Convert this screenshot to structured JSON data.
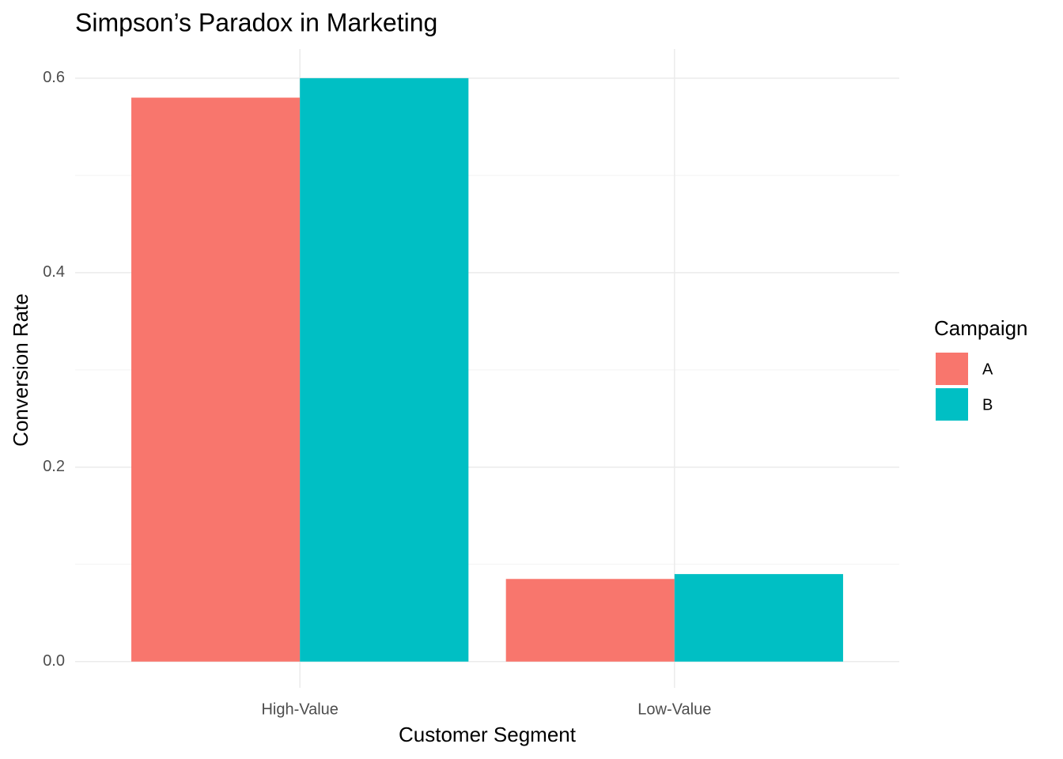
{
  "chart_data": {
    "type": "bar",
    "title": "Simpson’s Paradox in Marketing",
    "x_label": "Customer Segment",
    "y_label": "Conversion Rate",
    "legend_title": "Campaign",
    "categories": [
      "High-Value",
      "Low-Value"
    ],
    "series": [
      {
        "name": "A",
        "color": "#f8766d",
        "values": [
          0.58,
          0.085
        ]
      },
      {
        "name": "B",
        "color": "#00bfc4",
        "values": [
          0.6,
          0.09
        ]
      }
    ],
    "ylim": [
      -0.027,
      0.63
    ],
    "yticks": [
      {
        "value": 0,
        "label": "0.0"
      },
      0.2,
      0.4,
      0.6
    ],
    "yminor": [
      0.1,
      0.3,
      0.5
    ],
    "grid": true,
    "legend": "right"
  }
}
